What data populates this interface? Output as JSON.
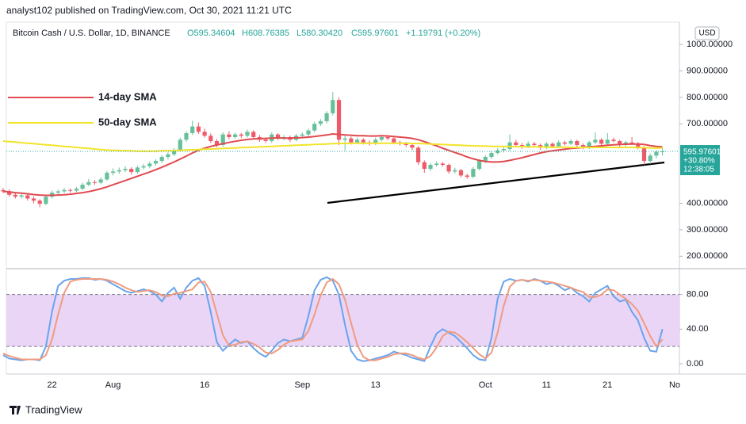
{
  "header": {
    "publisher": "analyst102 published on TradingView.com, Oct 30, 2021 11:21 UTC",
    "symbol": "Bitcoin Cash / U.S. Dollar, 1D, BINANCE",
    "open": "O595.34604",
    "high": "H608.76385",
    "low": "L580.30420",
    "close": "C595.97601",
    "change": "+1.19791 (+0.20%)"
  },
  "chart_data": {
    "type": "candlestick",
    "categories": [
      null,
      null,
      null,
      null,
      null,
      null,
      null,
      null,
      "22",
      null,
      null,
      null,
      null,
      null,
      null,
      null,
      null,
      null,
      "Aug",
      null,
      null,
      null,
      null,
      null,
      null,
      null,
      null,
      null,
      null,
      null,
      null,
      null,
      null,
      "16",
      null,
      null,
      null,
      null,
      null,
      null,
      null,
      null,
      null,
      null,
      null,
      null,
      null,
      null,
      null,
      "Sep",
      null,
      null,
      null,
      null,
      null,
      null,
      null,
      null,
      null,
      null,
      null,
      "13",
      null,
      null,
      null,
      null,
      null,
      null,
      null,
      null,
      null,
      null,
      null,
      null,
      null,
      null,
      null,
      null,
      null,
      "Oct",
      null,
      null,
      null,
      null,
      null,
      null,
      null,
      null,
      null,
      "11",
      null,
      null,
      null,
      null,
      null,
      null,
      null,
      null,
      null,
      "21",
      null,
      null,
      null,
      null,
      null,
      null,
      null,
      null,
      null
    ],
    "x_end_label": "No",
    "candles": [
      [
        450,
        458,
        438,
        445
      ],
      [
        445,
        452,
        425,
        432
      ],
      [
        432,
        440,
        418,
        425
      ],
      [
        425,
        438,
        418,
        430
      ],
      [
        430,
        436,
        410,
        418
      ],
      [
        418,
        425,
        400,
        410
      ],
      [
        410,
        415,
        385,
        398
      ],
      [
        398,
        430,
        392,
        425
      ],
      [
        425,
        448,
        418,
        440
      ],
      [
        440,
        452,
        432,
        445
      ],
      [
        445,
        458,
        438,
        450
      ],
      [
        450,
        456,
        440,
        448
      ],
      [
        448,
        462,
        442,
        455
      ],
      [
        455,
        478,
        450,
        470
      ],
      [
        470,
        492,
        465,
        480
      ],
      [
        480,
        488,
        470,
        478
      ],
      [
        478,
        498,
        472,
        490
      ],
      [
        490,
        522,
        485,
        515
      ],
      [
        515,
        532,
        505,
        520
      ],
      [
        520,
        535,
        512,
        525
      ],
      [
        525,
        540,
        518,
        530
      ],
      [
        530,
        536,
        508,
        518
      ],
      [
        518,
        542,
        512,
        535
      ],
      [
        535,
        548,
        528,
        540
      ],
      [
        540,
        558,
        532,
        550
      ],
      [
        550,
        566,
        542,
        560
      ],
      [
        560,
        582,
        552,
        575
      ],
      [
        575,
        592,
        566,
        585
      ],
      [
        585,
        608,
        578,
        600
      ],
      [
        600,
        648,
        595,
        640
      ],
      [
        640,
        672,
        632,
        665
      ],
      [
        665,
        712,
        658,
        690
      ],
      [
        690,
        705,
        662,
        670
      ],
      [
        670,
        682,
        648,
        655
      ],
      [
        655,
        664,
        628,
        635
      ],
      [
        635,
        642,
        612,
        620
      ],
      [
        620,
        668,
        614,
        660
      ],
      [
        660,
        672,
        642,
        650
      ],
      [
        650,
        668,
        644,
        660
      ],
      [
        660,
        666,
        646,
        655
      ],
      [
        655,
        678,
        648,
        670
      ],
      [
        670,
        676,
        644,
        650
      ],
      [
        650,
        658,
        632,
        640
      ],
      [
        640,
        648,
        628,
        635
      ],
      [
        635,
        668,
        628,
        660
      ],
      [
        660,
        665,
        640,
        645
      ],
      [
        645,
        658,
        638,
        650
      ],
      [
        650,
        656,
        632,
        640
      ],
      [
        640,
        662,
        634,
        655
      ],
      [
        655,
        668,
        648,
        660
      ],
      [
        660,
        682,
        652,
        675
      ],
      [
        675,
        708,
        668,
        700
      ],
      [
        700,
        718,
        692,
        710
      ],
      [
        710,
        748,
        702,
        740
      ],
      [
        740,
        820,
        732,
        790
      ],
      [
        790,
        800,
        620,
        640
      ],
      [
        640,
        655,
        600,
        645
      ],
      [
        645,
        652,
        622,
        630
      ],
      [
        630,
        648,
        624,
        640
      ],
      [
        640,
        646,
        622,
        630
      ],
      [
        630,
        638,
        618,
        625
      ],
      [
        625,
        648,
        620,
        640
      ],
      [
        640,
        658,
        634,
        650
      ],
      [
        650,
        656,
        638,
        645
      ],
      [
        645,
        650,
        624,
        630
      ],
      [
        630,
        636,
        618,
        625
      ],
      [
        625,
        632,
        612,
        620
      ],
      [
        620,
        626,
        600,
        610
      ],
      [
        610,
        616,
        545,
        555
      ],
      [
        555,
        562,
        515,
        530
      ],
      [
        530,
        552,
        522,
        545
      ],
      [
        545,
        558,
        538,
        550
      ],
      [
        550,
        556,
        538,
        545
      ],
      [
        545,
        550,
        512,
        520
      ],
      [
        520,
        534,
        512,
        525
      ],
      [
        525,
        530,
        498,
        505
      ],
      [
        505,
        512,
        492,
        500
      ],
      [
        500,
        538,
        495,
        530
      ],
      [
        530,
        566,
        524,
        560
      ],
      [
        560,
        582,
        552,
        575
      ],
      [
        575,
        598,
        568,
        590
      ],
      [
        590,
        608,
        584,
        600
      ],
      [
        600,
        614,
        592,
        605
      ],
      [
        605,
        660,
        598,
        630
      ],
      [
        630,
        640,
        612,
        620
      ],
      [
        620,
        628,
        606,
        615
      ],
      [
        615,
        634,
        608,
        625
      ],
      [
        625,
        632,
        612,
        620
      ],
      [
        620,
        626,
        602,
        610
      ],
      [
        610,
        632,
        604,
        625
      ],
      [
        625,
        630,
        608,
        615
      ],
      [
        615,
        638,
        610,
        630
      ],
      [
        630,
        636,
        618,
        625
      ],
      [
        625,
        642,
        620,
        635
      ],
      [
        635,
        640,
        614,
        620
      ],
      [
        620,
        626,
        604,
        610
      ],
      [
        610,
        636,
        605,
        630
      ],
      [
        630,
        668,
        624,
        640
      ],
      [
        640,
        646,
        620,
        625
      ],
      [
        625,
        665,
        620,
        640
      ],
      [
        640,
        648,
        630,
        635
      ],
      [
        635,
        640,
        614,
        620
      ],
      [
        620,
        636,
        615,
        630
      ],
      [
        630,
        650,
        620,
        625
      ],
      [
        625,
        632,
        604,
        610
      ],
      [
        610,
        616,
        545,
        560
      ],
      [
        560,
        588,
        548,
        580
      ],
      [
        580,
        600,
        570,
        594.78
      ],
      [
        595.34604,
        608.76385,
        580.3042,
        595.97601
      ]
    ],
    "up_color": "#66c19b",
    "down_color": "#ef5a68",
    "ylim": [
      156,
      1084
    ],
    "yticks": [
      {
        "value": 200,
        "label": "200.00000"
      },
      {
        "value": 300,
        "label": "300.00000"
      },
      {
        "value": 400,
        "label": "400.00000"
      },
      {
        "value": 700,
        "label": "700.00000"
      },
      {
        "value": 800,
        "label": "800.00000"
      },
      {
        "value": 900,
        "label": "900.00000"
      },
      {
        "value": 1000,
        "label": "1000.00000"
      }
    ],
    "currency": "USD",
    "last_price_label": "595.97601",
    "change_label": "+30.80%",
    "countdown": "12:38:05",
    "series": [
      {
        "name": "14-day SMA",
        "color": "#e04a50",
        "values": [
          445,
          443,
          440,
          438,
          436,
          433,
          431,
          430,
          430,
          431,
          432,
          434,
          437,
          440,
          444,
          449,
          455,
          462,
          470,
          478,
          486,
          494,
          502,
          510,
          518,
          527,
          536,
          546,
          556,
          567,
          578,
          590,
          600,
          608,
          615,
          620,
          625,
          630,
          634,
          638,
          641,
          643,
          644,
          645,
          646,
          647,
          646,
          646,
          647,
          648,
          650,
          652,
          655,
          658,
          662,
          660,
          658,
          657,
          655,
          655,
          654,
          654,
          655,
          654,
          652,
          650,
          648,
          645,
          640,
          633,
          625,
          617,
          608,
          600,
          592,
          584,
          575,
          568,
          562,
          558,
          556,
          556,
          558,
          562,
          567,
          572,
          578,
          584,
          590,
          595,
          598,
          601,
          604,
          607,
          609,
          611,
          613,
          615,
          617,
          619,
          621,
          622,
          623,
          624,
          624,
          622,
          618,
          615,
          613
        ]
      },
      {
        "name": "50-day SMA",
        "color": "#f2e42a",
        "values": [
          635,
          633,
          631,
          629,
          627,
          625,
          623,
          621,
          619,
          617,
          615,
          613,
          611,
          609,
          607,
          605,
          603,
          601,
          600,
          599,
          598,
          598,
          597,
          597,
          597,
          597,
          598,
          598,
          599,
          600,
          601,
          602,
          603,
          604,
          605,
          606,
          607,
          608,
          609,
          610,
          611,
          612,
          613,
          614,
          615,
          616,
          617,
          618,
          619,
          620,
          621,
          622,
          623,
          624,
          625,
          626,
          626,
          627,
          627,
          627,
          627,
          627,
          627,
          627,
          627,
          627,
          627,
          626,
          626,
          625,
          624,
          623,
          622,
          621,
          620,
          619,
          618,
          617,
          616,
          616,
          615,
          615,
          615,
          614,
          614,
          614,
          613,
          613,
          613,
          612,
          612,
          612,
          612,
          611,
          611,
          611,
          611,
          611,
          611,
          611,
          611,
          611,
          611,
          611,
          610,
          610,
          609,
          609,
          609
        ]
      }
    ],
    "stochastic": {
      "ylim": [
        -11,
        109
      ],
      "yticks": [
        {
          "value": 0,
          "label": "0.00"
        },
        {
          "value": 40,
          "label": "40.00"
        },
        {
          "value": 80,
          "label": "80.00"
        }
      ],
      "bands": [
        20,
        80
      ],
      "band_color": "#ead5f7",
      "series": [
        {
          "color": "#6aa4ec",
          "values": [
            10,
            6,
            5,
            4,
            5,
            5,
            4,
            20,
            60,
            90,
            96,
            98,
            98,
            99,
            99,
            97,
            98,
            96,
            92,
            88,
            84,
            82,
            84,
            86,
            84,
            80,
            72,
            82,
            88,
            75,
            88,
            96,
            99,
            90,
            60,
            25,
            15,
            22,
            28,
            24,
            26,
            18,
            12,
            8,
            15,
            24,
            28,
            26,
            28,
            30,
            55,
            85,
            97,
            100,
            96,
            80,
            45,
            15,
            5,
            3,
            4,
            6,
            8,
            10,
            14,
            12,
            10,
            7,
            5,
            3,
            20,
            35,
            40,
            36,
            32,
            25,
            18,
            10,
            5,
            4,
            30,
            75,
            95,
            98,
            96,
            97,
            95,
            98,
            96,
            92,
            94,
            90,
            85,
            88,
            82,
            78,
            72,
            82,
            86,
            90,
            78,
            72,
            74,
            60,
            50,
            30,
            15,
            14,
            40
          ]
        },
        {
          "color": "#f09b7e",
          "values": [
            12,
            9,
            7,
            5,
            5,
            5,
            5,
            10,
            28,
            57,
            82,
            95,
            97,
            98,
            98,
            98,
            98,
            97,
            95,
            92,
            88,
            85,
            83,
            84,
            85,
            83,
            79,
            78,
            81,
            82,
            84,
            86,
            94,
            95,
            83,
            58,
            33,
            21,
            22,
            25,
            26,
            23,
            19,
            13,
            12,
            16,
            22,
            26,
            27,
            28,
            38,
            57,
            79,
            94,
            98,
            92,
            74,
            47,
            22,
            8,
            4,
            4,
            6,
            8,
            11,
            12,
            12,
            10,
            7,
            5,
            9,
            19,
            32,
            37,
            36,
            31,
            25,
            18,
            11,
            6,
            13,
            36,
            67,
            89,
            96,
            97,
            96,
            97,
            96,
            95,
            94,
            92,
            90,
            88,
            85,
            83,
            77,
            77,
            80,
            86,
            85,
            80,
            75,
            69,
            61,
            47,
            32,
            20,
            28
          ]
        }
      ]
    }
  },
  "footer": {
    "brand": "TradingView"
  }
}
